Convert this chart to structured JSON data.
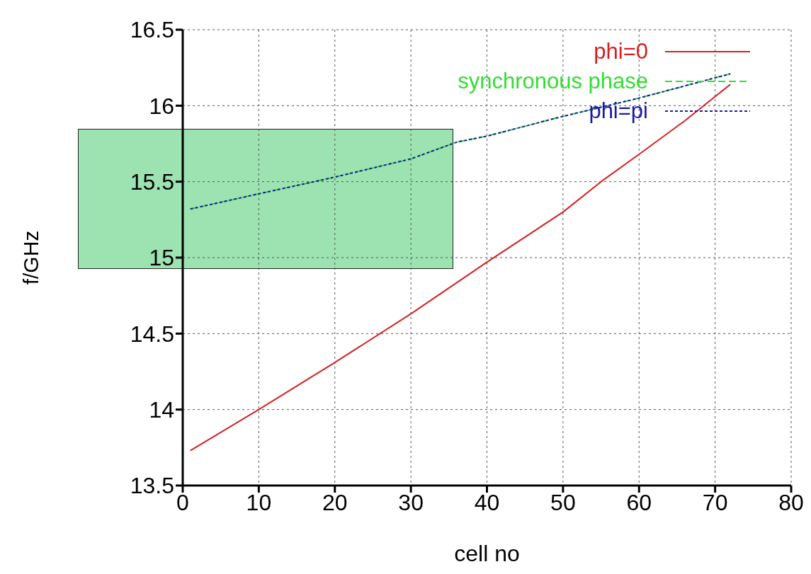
{
  "chart_data": {
    "type": "line",
    "xlabel": "cell no",
    "ylabel": "f/GHz",
    "xlim": [
      0,
      80
    ],
    "xticks": [
      0,
      10,
      20,
      30,
      40,
      50,
      60,
      70,
      80
    ],
    "ylim": [
      13.5,
      16.5
    ],
    "yticks": [
      13.5,
      14,
      14.5,
      15,
      15.5,
      16,
      16.5
    ],
    "grid": true,
    "legend": "top right",
    "marker": "none",
    "series": [
      {
        "name": "phi=0",
        "color": "#d42020",
        "line_style": "solid",
        "x": [
          1,
          10,
          20,
          30,
          40,
          50,
          55,
          60,
          66,
          72
        ],
        "values": [
          13.73,
          14.0,
          14.31,
          14.63,
          14.97,
          15.3,
          15.5,
          15.68,
          15.9,
          16.14
        ]
      },
      {
        "name": "synchronous phase",
        "color": "#33dd33",
        "line_style": "dashed",
        "x": [
          1,
          10,
          20,
          30,
          36,
          40,
          50,
          60,
          72
        ],
        "values": [
          15.32,
          15.42,
          15.53,
          15.65,
          15.76,
          15.8,
          15.93,
          16.05,
          16.21
        ]
      },
      {
        "name": "phi=pi",
        "color": "#1a1aa8",
        "line_style": "dotted",
        "x": [
          1,
          10,
          20,
          30,
          36,
          40,
          50,
          60,
          72
        ],
        "values": [
          15.32,
          15.42,
          15.53,
          15.65,
          15.76,
          15.8,
          15.93,
          16.05,
          16.21
        ]
      }
    ]
  }
}
